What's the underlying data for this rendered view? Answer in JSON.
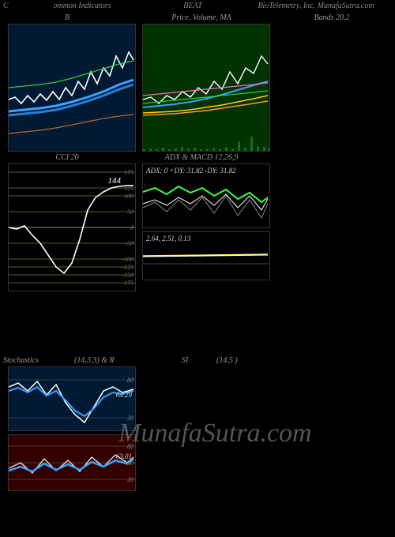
{
  "header": {
    "c": "C",
    "indicators": "ommon  Indicators",
    "ticker": "BEAT",
    "company": "BioTelemetry, Inc. MunafaSutra.com"
  },
  "panel_b": {
    "title": "B",
    "width": 160,
    "height": 160,
    "bg": "#001a33",
    "series": [
      {
        "color": "#ffffff",
        "width": 1.6,
        "pts": [
          [
            0,
            95
          ],
          [
            8,
            92
          ],
          [
            16,
            100
          ],
          [
            24,
            90
          ],
          [
            32,
            98
          ],
          [
            40,
            88
          ],
          [
            48,
            96
          ],
          [
            56,
            85
          ],
          [
            64,
            95
          ],
          [
            72,
            80
          ],
          [
            80,
            90
          ],
          [
            88,
            72
          ],
          [
            96,
            82
          ],
          [
            104,
            60
          ],
          [
            112,
            75
          ],
          [
            120,
            55
          ],
          [
            128,
            65
          ],
          [
            136,
            40
          ],
          [
            144,
            55
          ],
          [
            152,
            35
          ],
          [
            158,
            45
          ]
        ]
      },
      {
        "color": "#3aa3ff",
        "width": 3,
        "pts": [
          [
            0,
            110
          ],
          [
            20,
            108
          ],
          [
            40,
            106
          ],
          [
            60,
            103
          ],
          [
            80,
            98
          ],
          [
            100,
            92
          ],
          [
            120,
            85
          ],
          [
            140,
            76
          ],
          [
            158,
            70
          ]
        ]
      },
      {
        "color": "#2a7fd4",
        "width": 3,
        "pts": [
          [
            0,
            115
          ],
          [
            20,
            113
          ],
          [
            40,
            111
          ],
          [
            60,
            108
          ],
          [
            80,
            103
          ],
          [
            100,
            97
          ],
          [
            120,
            90
          ],
          [
            140,
            82
          ],
          [
            158,
            76
          ]
        ]
      },
      {
        "color": "#2ecc40",
        "width": 1.2,
        "pts": [
          [
            0,
            80
          ],
          [
            20,
            78
          ],
          [
            40,
            76
          ],
          [
            60,
            73
          ],
          [
            80,
            68
          ],
          [
            100,
            62
          ],
          [
            120,
            56
          ],
          [
            140,
            50
          ],
          [
            158,
            46
          ]
        ]
      },
      {
        "color": "#c0642a",
        "width": 1.2,
        "pts": [
          [
            0,
            138
          ],
          [
            20,
            136
          ],
          [
            40,
            134
          ],
          [
            60,
            131
          ],
          [
            80,
            127
          ],
          [
            100,
            123
          ],
          [
            120,
            119
          ],
          [
            140,
            116
          ],
          [
            158,
            114
          ]
        ]
      }
    ]
  },
  "panel_price": {
    "title": "Price,  Volume,  MA",
    "width": 160,
    "height": 160,
    "bg": "#003300",
    "series": [
      {
        "color": "#ffffff",
        "width": 1.4,
        "pts": [
          [
            0,
            95
          ],
          [
            10,
            92
          ],
          [
            20,
            100
          ],
          [
            30,
            90
          ],
          [
            40,
            95
          ],
          [
            50,
            85
          ],
          [
            60,
            92
          ],
          [
            70,
            80
          ],
          [
            80,
            88
          ],
          [
            90,
            72
          ],
          [
            100,
            82
          ],
          [
            110,
            60
          ],
          [
            120,
            75
          ],
          [
            130,
            55
          ],
          [
            140,
            62
          ],
          [
            150,
            40
          ],
          [
            158,
            50
          ]
        ]
      },
      {
        "color": "#3aa3ff",
        "width": 2,
        "pts": [
          [
            0,
            105
          ],
          [
            20,
            103
          ],
          [
            40,
            101
          ],
          [
            60,
            98
          ],
          [
            80,
            94
          ],
          [
            100,
            89
          ],
          [
            120,
            83
          ],
          [
            140,
            77
          ],
          [
            158,
            72
          ]
        ]
      },
      {
        "color": "#ffcc00",
        "width": 1.5,
        "pts": [
          [
            0,
            112
          ],
          [
            20,
            111
          ],
          [
            40,
            110
          ],
          [
            60,
            108
          ],
          [
            80,
            105
          ],
          [
            100,
            102
          ],
          [
            120,
            98
          ],
          [
            140,
            94
          ],
          [
            158,
            90
          ]
        ]
      },
      {
        "color": "#ff9933",
        "width": 1.5,
        "pts": [
          [
            0,
            115
          ],
          [
            20,
            114
          ],
          [
            40,
            113
          ],
          [
            60,
            111
          ],
          [
            80,
            109
          ],
          [
            100,
            106
          ],
          [
            120,
            103
          ],
          [
            140,
            100
          ],
          [
            158,
            97
          ]
        ]
      },
      {
        "color": "#ff66cc",
        "width": 1.2,
        "pts": [
          [
            0,
            90
          ],
          [
            20,
            88
          ],
          [
            40,
            86
          ],
          [
            60,
            84
          ],
          [
            80,
            82
          ],
          [
            100,
            80
          ],
          [
            120,
            78
          ],
          [
            140,
            76
          ],
          [
            158,
            74
          ]
        ]
      },
      {
        "color": "#2ecc40",
        "width": 1.2,
        "pts": [
          [
            0,
            100
          ],
          [
            20,
            98
          ],
          [
            40,
            96
          ],
          [
            60,
            94
          ],
          [
            80,
            92
          ],
          [
            100,
            90
          ],
          [
            120,
            88
          ],
          [
            140,
            86
          ],
          [
            158,
            84
          ]
        ]
      }
    ],
    "volume": {
      "color": "#1a6b1a",
      "bars": [
        [
          0,
          2
        ],
        [
          8,
          3
        ],
        [
          16,
          2
        ],
        [
          24,
          4
        ],
        [
          32,
          2
        ],
        [
          40,
          3
        ],
        [
          48,
          5
        ],
        [
          56,
          3
        ],
        [
          64,
          4
        ],
        [
          72,
          2
        ],
        [
          80,
          3
        ],
        [
          88,
          4
        ],
        [
          96,
          2
        ],
        [
          104,
          5
        ],
        [
          112,
          3
        ],
        [
          120,
          12
        ],
        [
          128,
          4
        ],
        [
          136,
          18
        ],
        [
          144,
          6
        ],
        [
          152,
          5
        ],
        [
          158,
          3
        ]
      ]
    }
  },
  "panel_bands": {
    "title": "Bands 20,2"
  },
  "panel_cci": {
    "title": "CCI 20",
    "width": 160,
    "height": 160,
    "levels": [
      175,
      125,
      100,
      50,
      0,
      -50,
      -100,
      -125,
      -150,
      -175
    ],
    "level_color": "#5a5a2a",
    "zero_color": "#888",
    "value_label": "144",
    "series": {
      "color": "#ffffff",
      "width": 1.6,
      "pts": [
        [
          0,
          80
        ],
        [
          10,
          82
        ],
        [
          20,
          78
        ],
        [
          30,
          90
        ],
        [
          40,
          100
        ],
        [
          50,
          115
        ],
        [
          60,
          130
        ],
        [
          70,
          138
        ],
        [
          80,
          125
        ],
        [
          90,
          95
        ],
        [
          100,
          58
        ],
        [
          110,
          42
        ],
        [
          120,
          35
        ],
        [
          130,
          30
        ],
        [
          140,
          28
        ],
        [
          150,
          27
        ],
        [
          158,
          27
        ]
      ]
    }
  },
  "panel_adx": {
    "title": "ADX  & MACD 12,26,9",
    "width": 160,
    "height": 80,
    "label": "ADX: 0   +DY: 31.82  -DY: 31.82",
    "series": [
      {
        "color": "#3aff3a",
        "width": 2,
        "pts": [
          [
            0,
            35
          ],
          [
            15,
            30
          ],
          [
            30,
            38
          ],
          [
            45,
            28
          ],
          [
            60,
            36
          ],
          [
            75,
            30
          ],
          [
            90,
            40
          ],
          [
            105,
            32
          ],
          [
            120,
            44
          ],
          [
            135,
            36
          ],
          [
            150,
            48
          ],
          [
            158,
            42
          ]
        ]
      },
      {
        "color": "#888",
        "width": 1,
        "pts": [
          [
            0,
            55
          ],
          [
            15,
            48
          ],
          [
            30,
            60
          ],
          [
            45,
            45
          ],
          [
            60,
            58
          ],
          [
            75,
            42
          ],
          [
            90,
            62
          ],
          [
            105,
            40
          ],
          [
            120,
            65
          ],
          [
            135,
            45
          ],
          [
            150,
            68
          ],
          [
            158,
            50
          ]
        ]
      },
      {
        "color": "#ffffff",
        "width": 1,
        "pts": [
          [
            0,
            50
          ],
          [
            15,
            45
          ],
          [
            30,
            52
          ],
          [
            45,
            42
          ],
          [
            60,
            50
          ],
          [
            75,
            40
          ],
          [
            90,
            52
          ],
          [
            105,
            38
          ],
          [
            120,
            55
          ],
          [
            135,
            40
          ],
          [
            150,
            58
          ],
          [
            158,
            44
          ]
        ]
      }
    ]
  },
  "panel_macd": {
    "width": 160,
    "height": 60,
    "label": "2.64,  2.51,  0.13",
    "series": [
      {
        "color": "#ffff66",
        "width": 1.5,
        "pts": [
          [
            0,
            30
          ],
          [
            158,
            28
          ]
        ]
      },
      {
        "color": "#ffffff",
        "width": 1,
        "pts": [
          [
            0,
            31
          ],
          [
            158,
            29
          ]
        ]
      }
    ]
  },
  "stoch_header": {
    "left": "Stochastics",
    "mid1": "(14,3,3) & R",
    "mid2": "SI",
    "right": "(14,5                                )"
  },
  "panel_stoch1": {
    "width": 160,
    "height": 80,
    "bg": "#001a33",
    "levels": [
      80,
      20
    ],
    "value_label": "64.29",
    "series": [
      {
        "color": "#ffffff",
        "width": 1.5,
        "pts": [
          [
            0,
            25
          ],
          [
            12,
            20
          ],
          [
            24,
            30
          ],
          [
            36,
            18
          ],
          [
            48,
            35
          ],
          [
            60,
            22
          ],
          [
            72,
            45
          ],
          [
            84,
            60
          ],
          [
            96,
            70
          ],
          [
            108,
            50
          ],
          [
            120,
            30
          ],
          [
            132,
            25
          ],
          [
            144,
            32
          ],
          [
            158,
            28
          ]
        ]
      },
      {
        "color": "#3aa3ff",
        "width": 2,
        "pts": [
          [
            0,
            30
          ],
          [
            12,
            26
          ],
          [
            24,
            32
          ],
          [
            36,
            25
          ],
          [
            48,
            36
          ],
          [
            60,
            30
          ],
          [
            72,
            42
          ],
          [
            84,
            55
          ],
          [
            96,
            62
          ],
          [
            108,
            52
          ],
          [
            120,
            38
          ],
          [
            132,
            32
          ],
          [
            144,
            34
          ],
          [
            158,
            30
          ]
        ]
      }
    ]
  },
  "panel_stoch2": {
    "width": 160,
    "height": 70,
    "bg": "#330000",
    "levels": [
      80,
      50,
      20
    ],
    "value_label": "63.01",
    "series": [
      {
        "color": "#ffffff",
        "width": 1.2,
        "pts": [
          [
            0,
            42
          ],
          [
            15,
            35
          ],
          [
            30,
            48
          ],
          [
            45,
            30
          ],
          [
            60,
            45
          ],
          [
            75,
            32
          ],
          [
            90,
            46
          ],
          [
            105,
            28
          ],
          [
            120,
            40
          ],
          [
            135,
            25
          ],
          [
            150,
            35
          ],
          [
            158,
            28
          ]
        ]
      },
      {
        "color": "#3aa3ff",
        "width": 2.5,
        "pts": [
          [
            0,
            45
          ],
          [
            15,
            40
          ],
          [
            30,
            46
          ],
          [
            45,
            36
          ],
          [
            60,
            44
          ],
          [
            75,
            37
          ],
          [
            90,
            44
          ],
          [
            105,
            34
          ],
          [
            120,
            40
          ],
          [
            135,
            32
          ],
          [
            150,
            36
          ],
          [
            158,
            30
          ]
        ]
      }
    ]
  },
  "watermark": "MunafaSutra.com"
}
